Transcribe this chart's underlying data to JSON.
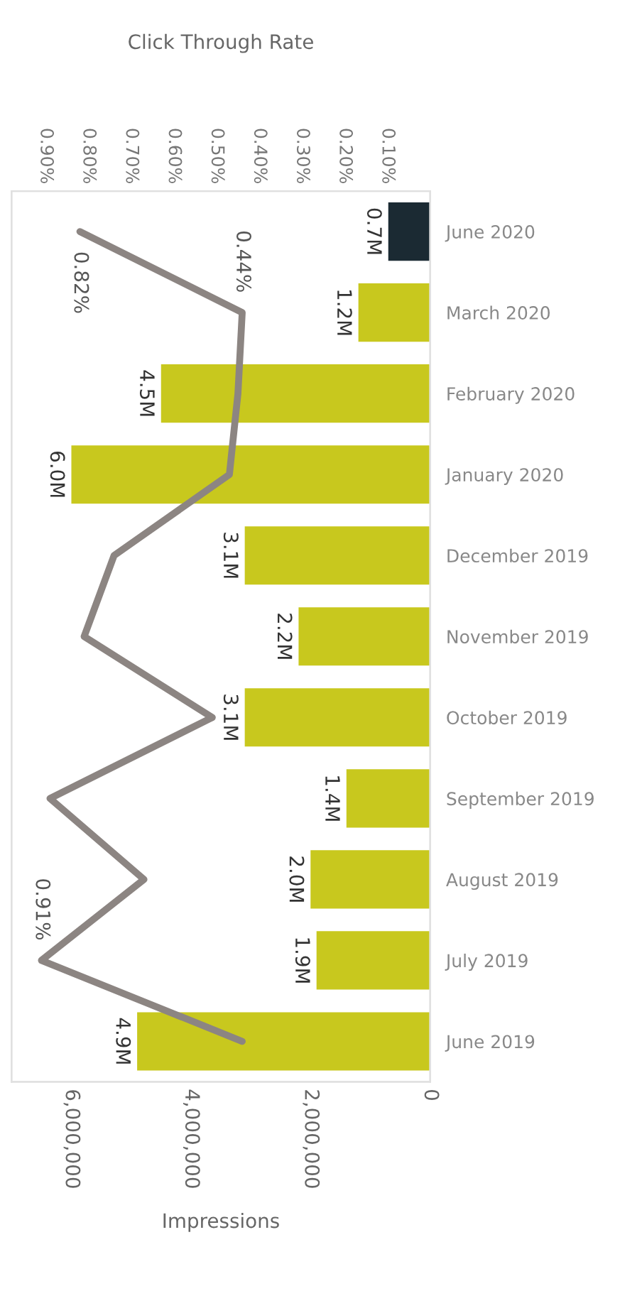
{
  "chart_data": {
    "type": "bar",
    "orientation": "horizontal",
    "categories": [
      "June 2020",
      "March 2020",
      "February 2020",
      "January 2020",
      "December 2019",
      "November 2019",
      "October 2019",
      "September 2019",
      "August 2019",
      "July 2019",
      "June 2019"
    ],
    "xlabel": "Impressions",
    "x2label": "Click Through Rate",
    "xlim": [
      7000000,
      0
    ],
    "xticks": [
      {
        "value": 6000000,
        "label": "6,000,000"
      },
      {
        "value": 4000000,
        "label": "4,000,000"
      },
      {
        "value": 2000000,
        "label": "2,000,000"
      },
      0
    ],
    "x2lim": [
      0.98,
      0
    ],
    "x2ticks": [
      {
        "value": 0.9,
        "label": "0.90%"
      },
      {
        "value": 0.8,
        "label": "0.80%"
      },
      {
        "value": 0.7,
        "label": "0.70%"
      },
      {
        "value": 0.6,
        "label": "0.60%"
      },
      {
        "value": 0.5,
        "label": "0.50%"
      },
      {
        "value": 0.4,
        "label": "0.40%"
      },
      {
        "value": 0.3,
        "label": "0.30%"
      },
      {
        "value": 0.2,
        "label": "0.20%"
      },
      {
        "value": 0.1,
        "label": "0.10%"
      }
    ],
    "series": [
      {
        "values": [
          700000,
          1200000,
          4500000,
          6000000,
          3100000,
          2200000,
          3100000,
          1400000,
          2000000,
          1900000,
          4900000
        ],
        "colors": [
          "#1b2a33",
          "#c8c81e",
          "#c8c81e",
          "#c8c81e",
          "#c8c81e",
          "#c8c81e",
          "#c8c81e",
          "#c8c81e",
          "#c8c81e",
          "#c8c81e",
          "#c8c81e"
        ],
        "value_labels": [
          "0.7M",
          "1.2M",
          "4.5M",
          "6.0M",
          "3.1M",
          "2.2M",
          "3.1M",
          "1.4M",
          "2.0M",
          "1.9M",
          "4.9M"
        ]
      },
      {
        "type": "line",
        "axis": "x2",
        "color": "#8c8582",
        "values": [
          0.82,
          0.44,
          0.45,
          0.47,
          0.74,
          0.81,
          0.51,
          0.89,
          0.67,
          0.91,
          0.44
        ],
        "value_labels": [
          "0.82%",
          "0.44%",
          null,
          null,
          null,
          null,
          null,
          null,
          null,
          "0.91%",
          null
        ]
      }
    ],
    "grid": false,
    "legend": false
  }
}
